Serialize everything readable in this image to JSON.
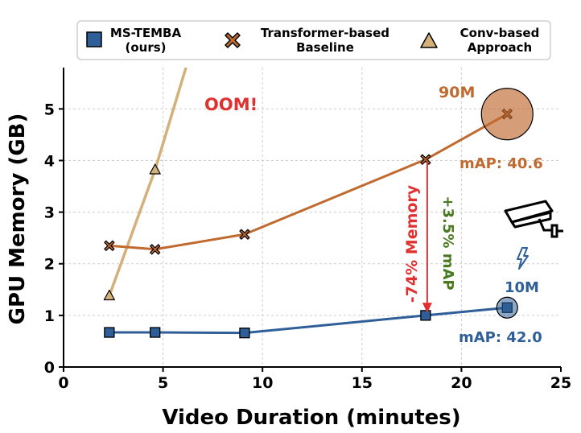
{
  "colors": {
    "ms_temba": "#2f5f98",
    "transformer": "#c06a30",
    "conv": "#d4b07a",
    "oom": "#e03030",
    "memory_arrow": "#e03030",
    "map_gain": "#4a7a20",
    "grid": "#cccccc"
  },
  "legend": {
    "ms_temba": [
      "MS-TEMBA",
      "(ours)"
    ],
    "transformer": [
      "Transformer-based",
      "Baseline"
    ],
    "conv": [
      "Conv-based",
      "Approach"
    ]
  },
  "annotations": {
    "oom": "OOM!",
    "params_transformer": "90M",
    "params_ms_temba": "10M",
    "map_transformer": "mAP: 40.6",
    "map_ms_temba": "mAP: 42.0",
    "memory_reduction": "-74% Memory",
    "map_gain": "+3.5% mAP"
  },
  "icons": [
    "security-camera-icon",
    "lightning-icon"
  ],
  "chart_data": {
    "type": "line",
    "xlabel": "Video Duration (minutes)",
    "ylabel": "GPU Memory (GB)",
    "xlim": [
      0,
      25
    ],
    "ylim": [
      0,
      5.8
    ],
    "xticks": [
      0,
      5,
      10,
      15,
      20,
      25
    ],
    "yticks": [
      0,
      1,
      2,
      3,
      4,
      5
    ],
    "grid": true,
    "legend_position": "top",
    "series": [
      {
        "name": "MS-TEMBA (ours)",
        "marker": "square",
        "x": [
          2.3,
          4.6,
          9.1,
          18.2,
          22.3
        ],
        "y": [
          0.67,
          0.67,
          0.66,
          1.0,
          1.15
        ]
      },
      {
        "name": "Transformer-based Baseline",
        "marker": "x",
        "x": [
          2.3,
          4.6,
          9.1,
          18.2,
          22.3
        ],
        "y": [
          2.35,
          2.28,
          2.57,
          4.02,
          4.9
        ]
      },
      {
        "name": "Conv-based Approach",
        "marker": "triangle",
        "x": [
          2.3,
          4.6,
          6.7
        ],
        "y": [
          1.38,
          3.82,
          6.5
        ]
      }
    ]
  }
}
